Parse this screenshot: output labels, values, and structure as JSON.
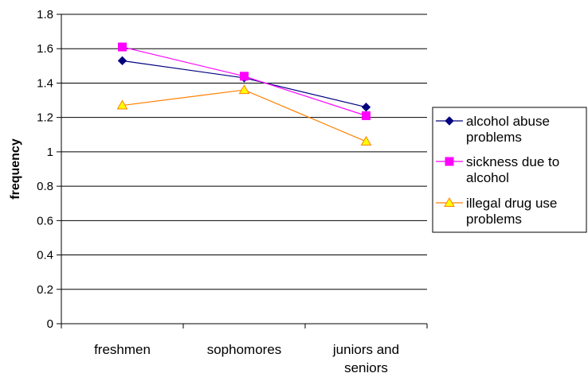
{
  "chart_data": {
    "type": "line",
    "title": "",
    "xlabel": "",
    "ylabel": "frequency",
    "categories": [
      "freshmen",
      "sophomores",
      "juniors and seniors"
    ],
    "category_lines": [
      [
        "freshmen"
      ],
      [
        "sophomores"
      ],
      [
        "juniors and",
        "seniors"
      ]
    ],
    "ylim": [
      0,
      1.8
    ],
    "yticks": [
      "0",
      "0.2",
      "0.4",
      "0.6",
      "0.8",
      "1",
      "1.2",
      "1.4",
      "1.6",
      "1.8"
    ],
    "ytick_values": [
      0,
      0.2,
      0.4,
      0.6,
      0.8,
      1,
      1.2,
      1.4,
      1.6,
      1.8
    ],
    "grid": true,
    "legend_position": "right",
    "series": [
      {
        "name": "alcohol abuse problems",
        "name_lines": [
          "alcohol abuse",
          "problems"
        ],
        "values": [
          1.53,
          1.43,
          1.26
        ],
        "color": "#000080",
        "marker": "diamond",
        "marker_fill": "#000080"
      },
      {
        "name": "sickness due to alcohol",
        "name_lines": [
          "sickness due to",
          "alcohol"
        ],
        "values": [
          1.61,
          1.44,
          1.21
        ],
        "color": "#FF00FF",
        "marker": "square",
        "marker_fill": "#FF00FF"
      },
      {
        "name": "illegal drug use problems",
        "name_lines": [
          "illegal drug use",
          "problems"
        ],
        "values": [
          1.27,
          1.36,
          1.06
        ],
        "color": "#FF8000",
        "marker": "triangle",
        "marker_fill": "#FFFF00"
      }
    ]
  }
}
